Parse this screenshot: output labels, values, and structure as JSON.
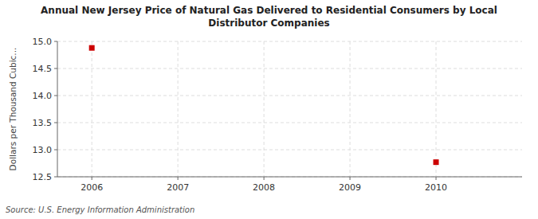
{
  "chart_data": {
    "type": "scatter",
    "title": "Annual New Jersey Price of Natural Gas Delivered to Residential Consumers by Local\nDistributor Companies",
    "y_label": "Dollars per Thousand Cubic...",
    "source": "Source: U.S. Energy Information Administration",
    "x": [
      2006,
      2010
    ],
    "values": [
      14.88,
      12.77
    ],
    "color": "#cc0000",
    "marker": "square",
    "xlim": [
      2005.6,
      2011.0
    ],
    "ylim": [
      12.5,
      15.0
    ],
    "xticks": [
      2006,
      2007,
      2008,
      2009,
      2010
    ],
    "yticks": [
      12.5,
      {
        "value": 13.0,
        "label": "13.0"
      },
      13.5,
      {
        "value": 14.0,
        "label": "14.0"
      },
      14.5,
      {
        "value": 15.0,
        "label": "15.0"
      }
    ],
    "grid": true
  }
}
